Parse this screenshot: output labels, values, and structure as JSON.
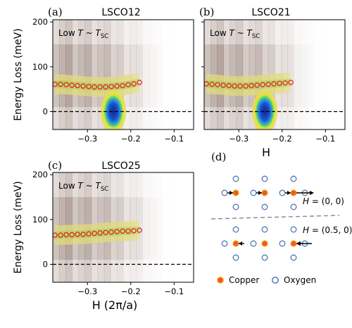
{
  "chart_data": [
    {
      "panel_label": "(a)",
      "title": "LSCO12",
      "type": "heatmap",
      "annotation": {
        "prefix": "Low ",
        "T": "T",
        "tilde": " ~ ",
        "Tsc": "T",
        "sub": "SC"
      },
      "xlim": [
        -0.38,
        -0.055
      ],
      "ylim": [
        -40,
        205
      ],
      "xticks": [
        -0.3,
        -0.2,
        -0.1
      ],
      "xtick_labels": [
        "−0.3",
        "−0.2",
        "−0.1"
      ],
      "yticks": [
        0,
        100,
        200
      ],
      "ytick_labels": [
        "0",
        "100",
        "200"
      ],
      "ylabel": "Energy Loss (meV)",
      "xlabel": "",
      "elastic_peak": {
        "x": -0.24,
        "y": 0
      },
      "dispersion": {
        "x": [
          -0.375,
          -0.362,
          -0.349,
          -0.336,
          -0.323,
          -0.31,
          -0.297,
          -0.284,
          -0.271,
          -0.258,
          -0.245,
          -0.232,
          -0.219,
          -0.206,
          -0.193,
          -0.18
        ],
        "y": [
          61,
          61,
          60,
          59,
          58,
          57,
          56,
          55,
          55,
          55,
          56,
          57,
          58,
          60,
          62,
          65
        ]
      },
      "zero_line": 0
    },
    {
      "panel_label": "(b)",
      "title": "LSCO21",
      "type": "heatmap",
      "annotation": {
        "prefix": "Low ",
        "T": "T",
        "tilde": " ~ ",
        "Tsc": "T",
        "sub": "SC"
      },
      "xlim": [
        -0.38,
        -0.055
      ],
      "ylim": [
        -40,
        205
      ],
      "xticks": [
        -0.3,
        -0.2,
        -0.1
      ],
      "xtick_labels": [
        "−0.3",
        "−0.2",
        "−0.1"
      ],
      "yticks": [
        0,
        100,
        200
      ],
      "ytick_labels": [
        "",
        "",
        ""
      ],
      "ylabel": "",
      "xlabel": "H",
      "elastic_peak": {
        "x": -0.24,
        "y": 0
      },
      "dispersion": {
        "x": [
          -0.375,
          -0.362,
          -0.349,
          -0.336,
          -0.323,
          -0.31,
          -0.297,
          -0.284,
          -0.271,
          -0.258,
          -0.245,
          -0.232,
          -0.219,
          -0.206,
          -0.193,
          -0.18
        ],
        "y": [
          62,
          61,
          60,
          59,
          58,
          57,
          57,
          57,
          58,
          59,
          60,
          61,
          62,
          63,
          64,
          65
        ]
      },
      "zero_line": 0
    },
    {
      "panel_label": "(c)",
      "title": "LSCO25",
      "type": "heatmap",
      "annotation": {
        "prefix": "Low ",
        "T": "T",
        "tilde": " ~ ",
        "Tsc": "T",
        "sub": "SC"
      },
      "xlim": [
        -0.38,
        -0.055
      ],
      "ylim": [
        -40,
        205
      ],
      "xticks": [
        -0.3,
        -0.2,
        -0.1
      ],
      "xtick_labels": [
        "−0.3",
        "−0.2",
        "−0.1"
      ],
      "yticks": [
        0,
        100,
        200
      ],
      "ytick_labels": [
        "0",
        "100",
        "200"
      ],
      "ylabel": "Energy Loss (meV)",
      "xlabel": "H (2π/a)",
      "elastic_peak": null,
      "dispersion": {
        "x": [
          -0.375,
          -0.362,
          -0.349,
          -0.336,
          -0.323,
          -0.31,
          -0.297,
          -0.284,
          -0.271,
          -0.258,
          -0.245,
          -0.232,
          -0.219,
          -0.206,
          -0.193,
          -0.18
        ],
        "y": [
          65,
          65,
          66,
          66,
          67,
          67,
          68,
          69,
          70,
          71,
          72,
          73,
          74,
          74,
          75,
          76
        ]
      },
      "zero_line": 0
    }
  ],
  "diagram": {
    "panel_label": "(d)",
    "top_label": {
      "H": "H",
      "eq": " = (0, 0)"
    },
    "bottom_label": {
      "H": "H",
      "eq": " = (0.5, 0)"
    },
    "legend": {
      "copper": "Copper",
      "oxygen": "Oxygen"
    },
    "colors": {
      "copper": "#f05a1e",
      "copper_edge": "#f5a623",
      "oxygen": "#8ab4e0",
      "oxygen_edge": "#4d78b4",
      "divider": "#888888"
    }
  },
  "colors": {
    "dispersion": "#e41a1c",
    "zero_line": "#000000"
  }
}
